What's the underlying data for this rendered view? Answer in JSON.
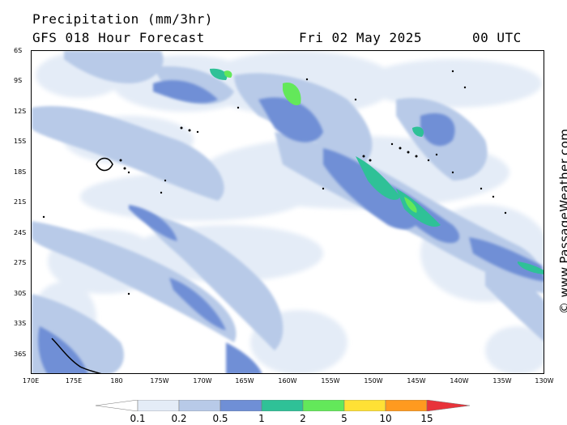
{
  "header": {
    "title": "Precipitation (mm/3hr)",
    "subtitle": "GFS 018 Hour Forecast",
    "datetime": "Fri 02 May 2025",
    "time": "00 UTC"
  },
  "credit": "© www.PassageWeather.com",
  "lat_labels": [
    "6S",
    "9S",
    "12S",
    "15S",
    "18S",
    "21S",
    "24S",
    "27S",
    "30S",
    "33S",
    "36S"
  ],
  "lon_labels": [
    "170E",
    "175E",
    "180",
    "175W",
    "170W",
    "165W",
    "160W",
    "155W",
    "150W",
    "145W",
    "140W",
    "135W",
    "130W"
  ],
  "legend": {
    "labels": [
      "0.1",
      "0.2",
      "0.5",
      "1",
      "2",
      "5",
      "10",
      "15"
    ],
    "colors": [
      "#ffffff",
      "#e4ecf7",
      "#b8cae8",
      "#6f8fd6",
      "#2fc197",
      "#63e85a",
      "#ffe135",
      "#ff9a1f",
      "#e8333a"
    ]
  },
  "map": {
    "projection": "lat-lon",
    "lat_range": [
      "6S",
      "38S"
    ],
    "lon_range": [
      "170E",
      "130W"
    ],
    "field": "precipitation",
    "units": "mm/3hr"
  }
}
